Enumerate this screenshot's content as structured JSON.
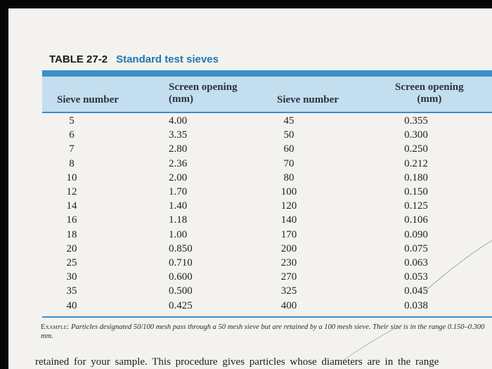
{
  "table": {
    "number": "TABLE 27-2",
    "title": "Standard test sieves",
    "headers": {
      "sieve1": "Sieve number",
      "opening1_line1": "Screen opening",
      "opening1_line2": "(mm)",
      "sieve2": "Sieve number",
      "opening2_line1": "Screen opening",
      "opening2_line2": "(mm)"
    },
    "rows": [
      [
        "5",
        "4.00",
        "45",
        "0.355"
      ],
      [
        "6",
        "3.35",
        "50",
        "0.300"
      ],
      [
        "7",
        "2.80",
        "60",
        "0.250"
      ],
      [
        "8",
        "2.36",
        "70",
        "0.212"
      ],
      [
        "10",
        "2.00",
        "80",
        "0.180"
      ],
      [
        "12",
        "1.70",
        "100",
        "0.150"
      ],
      [
        "14",
        "1.40",
        "120",
        "0.125"
      ],
      [
        "16",
        "1.18",
        "140",
        "0.106"
      ],
      [
        "18",
        "1.00",
        "170",
        "0.090"
      ],
      [
        "20",
        "0.850",
        "200",
        "0.075"
      ],
      [
        "25",
        "0.710",
        "230",
        "0.063"
      ],
      [
        "30",
        "0.600",
        "270",
        "0.053"
      ],
      [
        "35",
        "0.500",
        "325",
        "0.045"
      ],
      [
        "40",
        "0.425",
        "400",
        "0.038"
      ]
    ],
    "example_lead": "Example:",
    "example_text": "Particles designated 50/100 mesh pass through a 50 mesh sieve but are retained by a 100 mesh sieve. Their size is in the range 0.150–0.300 mm."
  },
  "body_text": "retained for your sample. This procedure gives particles whose diameters are in the range",
  "colors": {
    "accent_blue": "#3b8fc8",
    "header_fill": "#c2deef",
    "title_blue": "#1f77b0",
    "paper": "#f3f2ee"
  }
}
